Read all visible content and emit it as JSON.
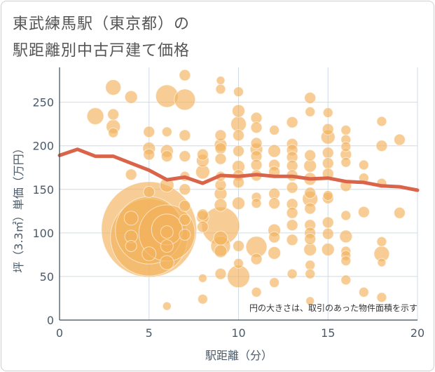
{
  "title_line1": "東武練馬駅（東京都）の",
  "title_line2": "駅距離別中古戸建て価格",
  "chart_data": {
    "type": "scatter",
    "title": "東武練馬駅（東京都）の駅距離別中古戸建て価格",
    "xlabel": "駅距離（分）",
    "ylabel": "坪（3.3㎡）単価（万円）",
    "xlim": [
      0,
      20
    ],
    "ylim": [
      0,
      290
    ],
    "xticks": [
      0,
      5,
      10,
      15,
      20
    ],
    "yticks": [
      0,
      50,
      100,
      150,
      200,
      250
    ],
    "note": "円の大きさは、取引のあった物件面積を示す",
    "colors": {
      "bubble": "#f2b25c",
      "trend": "#d9644a",
      "grid": "#cfdbe5",
      "axis_text": "#4a5a6a"
    },
    "trend": {
      "x": [
        0,
        1,
        2,
        3,
        4,
        5,
        6,
        7,
        8,
        9,
        10,
        11,
        12,
        13,
        14,
        15,
        16,
        17,
        18,
        19,
        20
      ],
      "y": [
        189,
        196,
        188,
        188,
        180,
        172,
        161,
        164,
        157,
        166,
        165,
        167,
        165,
        165,
        162,
        163,
        159,
        158,
        154,
        153,
        149
      ]
    },
    "points": [
      {
        "x": 2,
        "y": 234,
        "s": 12
      },
      {
        "x": 3,
        "y": 267,
        "s": 11
      },
      {
        "x": 3,
        "y": 236,
        "s": 8
      },
      {
        "x": 3,
        "y": 222,
        "s": 10
      },
      {
        "x": 3,
        "y": 215,
        "s": 7
      },
      {
        "x": 4,
        "y": 256,
        "s": 9
      },
      {
        "x": 4,
        "y": 167,
        "s": 8
      },
      {
        "x": 5,
        "y": 104,
        "s": 68
      },
      {
        "x": 5,
        "y": 95,
        "s": 55
      },
      {
        "x": 5,
        "y": 103,
        "s": 48
      },
      {
        "x": 4,
        "y": 96,
        "s": 9
      },
      {
        "x": 4,
        "y": 85,
        "s": 8
      },
      {
        "x": 4,
        "y": 117,
        "s": 10
      },
      {
        "x": 5,
        "y": 197,
        "s": 9
      },
      {
        "x": 5,
        "y": 216,
        "s": 8
      },
      {
        "x": 5,
        "y": 190,
        "s": 8
      },
      {
        "x": 5,
        "y": 147,
        "s": 8
      },
      {
        "x": 5,
        "y": 76,
        "s": 10
      },
      {
        "x": 6,
        "y": 257,
        "s": 16
      },
      {
        "x": 6,
        "y": 216,
        "s": 7
      },
      {
        "x": 6,
        "y": 194,
        "s": 9
      },
      {
        "x": 6,
        "y": 188,
        "s": 8
      },
      {
        "x": 6,
        "y": 155,
        "s": 10
      },
      {
        "x": 6,
        "y": 100,
        "s": 40
      },
      {
        "x": 6,
        "y": 104,
        "s": 22
      },
      {
        "x": 6,
        "y": 101,
        "s": 9
      },
      {
        "x": 6,
        "y": 85,
        "s": 9
      },
      {
        "x": 6,
        "y": 66,
        "s": 10
      },
      {
        "x": 6,
        "y": 16,
        "s": 6
      },
      {
        "x": 7,
        "y": 281,
        "s": 8
      },
      {
        "x": 7,
        "y": 253,
        "s": 15
      },
      {
        "x": 7,
        "y": 212,
        "s": 8
      },
      {
        "x": 7,
        "y": 188,
        "s": 8
      },
      {
        "x": 7,
        "y": 165,
        "s": 7
      },
      {
        "x": 7,
        "y": 150,
        "s": 8
      },
      {
        "x": 7,
        "y": 131,
        "s": 8
      },
      {
        "x": 7,
        "y": 115,
        "s": 8
      },
      {
        "x": 7,
        "y": 98,
        "s": 8
      },
      {
        "x": 8,
        "y": 190,
        "s": 8
      },
      {
        "x": 8,
        "y": 183,
        "s": 9
      },
      {
        "x": 8,
        "y": 170,
        "s": 10
      },
      {
        "x": 8,
        "y": 121,
        "s": 8
      },
      {
        "x": 8,
        "y": 118,
        "s": 9
      },
      {
        "x": 8,
        "y": 107,
        "s": 8
      },
      {
        "x": 8,
        "y": 48,
        "s": 6
      },
      {
        "x": 8,
        "y": 24,
        "s": 7
      },
      {
        "x": 9,
        "y": 275,
        "s": 6
      },
      {
        "x": 9,
        "y": 265,
        "s": 7
      },
      {
        "x": 9,
        "y": 212,
        "s": 8
      },
      {
        "x": 9,
        "y": 201,
        "s": 9
      },
      {
        "x": 9,
        "y": 197,
        "s": 8
      },
      {
        "x": 9,
        "y": 185,
        "s": 8
      },
      {
        "x": 9,
        "y": 165,
        "s": 7
      },
      {
        "x": 9,
        "y": 155,
        "s": 8
      },
      {
        "x": 9,
        "y": 145,
        "s": 9
      },
      {
        "x": 9,
        "y": 132,
        "s": 9
      },
      {
        "x": 9,
        "y": 108,
        "s": 27
      },
      {
        "x": 9,
        "y": 94,
        "s": 10
      },
      {
        "x": 9,
        "y": 85,
        "s": 14
      },
      {
        "x": 9,
        "y": 79,
        "s": 9
      },
      {
        "x": 9,
        "y": 53,
        "s": 8
      },
      {
        "x": 10,
        "y": 262,
        "s": 7
      },
      {
        "x": 10,
        "y": 240,
        "s": 9
      },
      {
        "x": 10,
        "y": 225,
        "s": 11
      },
      {
        "x": 10,
        "y": 212,
        "s": 8
      },
      {
        "x": 10,
        "y": 194,
        "s": 8
      },
      {
        "x": 10,
        "y": 176,
        "s": 9
      },
      {
        "x": 10,
        "y": 166,
        "s": 8
      },
      {
        "x": 10,
        "y": 158,
        "s": 8
      },
      {
        "x": 10,
        "y": 134,
        "s": 9
      },
      {
        "x": 10,
        "y": 85,
        "s": 8
      },
      {
        "x": 10,
        "y": 65,
        "s": 7
      },
      {
        "x": 10,
        "y": 50,
        "s": 16
      },
      {
        "x": 11,
        "y": 232,
        "s": 8
      },
      {
        "x": 11,
        "y": 221,
        "s": 8
      },
      {
        "x": 11,
        "y": 203,
        "s": 8
      },
      {
        "x": 11,
        "y": 196,
        "s": 9
      },
      {
        "x": 11,
        "y": 188,
        "s": 8
      },
      {
        "x": 11,
        "y": 178,
        "s": 8
      },
      {
        "x": 11,
        "y": 166,
        "s": 8
      },
      {
        "x": 11,
        "y": 141,
        "s": 7
      },
      {
        "x": 11,
        "y": 134,
        "s": 7
      },
      {
        "x": 11,
        "y": 84,
        "s": 15
      },
      {
        "x": 11,
        "y": 70,
        "s": 8
      },
      {
        "x": 11,
        "y": 32,
        "s": 7
      },
      {
        "x": 12,
        "y": 218,
        "s": 7
      },
      {
        "x": 12,
        "y": 194,
        "s": 9
      },
      {
        "x": 12,
        "y": 178,
        "s": 8
      },
      {
        "x": 12,
        "y": 170,
        "s": 8
      },
      {
        "x": 12,
        "y": 145,
        "s": 8
      },
      {
        "x": 12,
        "y": 134,
        "s": 8
      },
      {
        "x": 12,
        "y": 103,
        "s": 9
      },
      {
        "x": 12,
        "y": 95,
        "s": 8
      },
      {
        "x": 12,
        "y": 77,
        "s": 9
      },
      {
        "x": 12,
        "y": 43,
        "s": 7
      },
      {
        "x": 13,
        "y": 227,
        "s": 8
      },
      {
        "x": 13,
        "y": 202,
        "s": 8
      },
      {
        "x": 13,
        "y": 195,
        "s": 8
      },
      {
        "x": 13,
        "y": 187,
        "s": 8
      },
      {
        "x": 13,
        "y": 177,
        "s": 8
      },
      {
        "x": 13,
        "y": 166,
        "s": 8
      },
      {
        "x": 13,
        "y": 152,
        "s": 8
      },
      {
        "x": 13,
        "y": 133,
        "s": 8
      },
      {
        "x": 13,
        "y": 123,
        "s": 8
      },
      {
        "x": 13,
        "y": 109,
        "s": 8
      },
      {
        "x": 13,
        "y": 92,
        "s": 8
      },
      {
        "x": 13,
        "y": 53,
        "s": 7
      },
      {
        "x": 14,
        "y": 255,
        "s": 8
      },
      {
        "x": 14,
        "y": 239,
        "s": 7
      },
      {
        "x": 14,
        "y": 189,
        "s": 8
      },
      {
        "x": 14,
        "y": 177,
        "s": 9
      },
      {
        "x": 14,
        "y": 162,
        "s": 9
      },
      {
        "x": 14,
        "y": 146,
        "s": 8
      },
      {
        "x": 14,
        "y": 139,
        "s": 11
      },
      {
        "x": 14,
        "y": 128,
        "s": 8
      },
      {
        "x": 14,
        "y": 109,
        "s": 8
      },
      {
        "x": 14,
        "y": 100,
        "s": 8
      },
      {
        "x": 14,
        "y": 93,
        "s": 8
      },
      {
        "x": 14,
        "y": 81,
        "s": 9
      },
      {
        "x": 14,
        "y": 63,
        "s": 7
      },
      {
        "x": 14,
        "y": 53,
        "s": 7
      },
      {
        "x": 14,
        "y": 22,
        "s": 6
      },
      {
        "x": 15,
        "y": 238,
        "s": 7
      },
      {
        "x": 15,
        "y": 219,
        "s": 8
      },
      {
        "x": 15,
        "y": 210,
        "s": 10
      },
      {
        "x": 15,
        "y": 192,
        "s": 8
      },
      {
        "x": 15,
        "y": 180,
        "s": 8
      },
      {
        "x": 15,
        "y": 168,
        "s": 8
      },
      {
        "x": 15,
        "y": 143,
        "s": 7
      },
      {
        "x": 15,
        "y": 140,
        "s": 8
      },
      {
        "x": 15,
        "y": 112,
        "s": 8
      },
      {
        "x": 15,
        "y": 99,
        "s": 8
      },
      {
        "x": 15,
        "y": 81,
        "s": 9
      },
      {
        "x": 16,
        "y": 218,
        "s": 7
      },
      {
        "x": 16,
        "y": 207,
        "s": 7
      },
      {
        "x": 16,
        "y": 199,
        "s": 7
      },
      {
        "x": 16,
        "y": 190,
        "s": 8
      },
      {
        "x": 16,
        "y": 181,
        "s": 7
      },
      {
        "x": 16,
        "y": 154,
        "s": 8
      },
      {
        "x": 16,
        "y": 120,
        "s": 7
      },
      {
        "x": 16,
        "y": 96,
        "s": 9
      },
      {
        "x": 16,
        "y": 79,
        "s": 7
      },
      {
        "x": 16,
        "y": 74,
        "s": 7
      },
      {
        "x": 16,
        "y": 68,
        "s": 7
      },
      {
        "x": 16,
        "y": 46,
        "s": 7
      },
      {
        "x": 17,
        "y": 178,
        "s": 7
      },
      {
        "x": 17,
        "y": 163,
        "s": 7
      },
      {
        "x": 17,
        "y": 124,
        "s": 8
      },
      {
        "x": 17,
        "y": 32,
        "s": 7
      },
      {
        "x": 18,
        "y": 228,
        "s": 7
      },
      {
        "x": 18,
        "y": 200,
        "s": 8
      },
      {
        "x": 18,
        "y": 157,
        "s": 7
      },
      {
        "x": 18,
        "y": 90,
        "s": 7
      },
      {
        "x": 18,
        "y": 76,
        "s": 11
      },
      {
        "x": 18,
        "y": 66,
        "s": 6
      },
      {
        "x": 18,
        "y": 26,
        "s": 7
      },
      {
        "x": 19,
        "y": 207,
        "s": 8
      },
      {
        "x": 19,
        "y": 123,
        "s": 8
      }
    ]
  }
}
